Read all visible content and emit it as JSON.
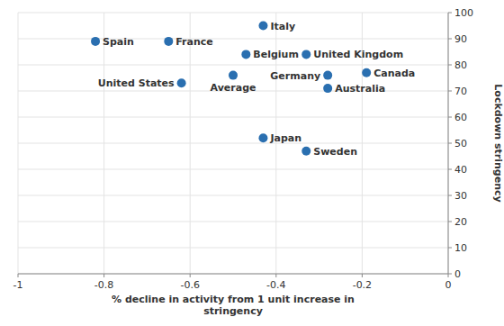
{
  "chart_data": {
    "type": "scatter",
    "xlabel": "% decline in activity from 1 unit increase in\nstringency",
    "ylabel": "Lockdown stringency",
    "labels": [
      "Spain",
      "France",
      "Belgium",
      "Italy",
      "United Kingdom",
      "Germany",
      "Canada",
      "Average",
      "United States",
      "Australia",
      "Japan",
      "Sweden"
    ],
    "x": [
      -0.82,
      -0.65,
      -0.47,
      -0.43,
      -0.33,
      -0.28,
      -0.19,
      -0.5,
      -0.62,
      -0.28,
      -0.43,
      -0.33
    ],
    "values": [
      89,
      89,
      84,
      95,
      84,
      76,
      77,
      76,
      73,
      71,
      52,
      47
    ],
    "color": "#2a6fb0",
    "xlim": [
      -1.0,
      0.0
    ],
    "xticks": [
      -1,
      -0.8,
      -0.6,
      -0.4,
      -0.2,
      0
    ],
    "ylim": [
      0,
      100
    ],
    "yticks": [
      0,
      10,
      20,
      30,
      40,
      50,
      60,
      70,
      80,
      90,
      100
    ],
    "grid": true
  }
}
